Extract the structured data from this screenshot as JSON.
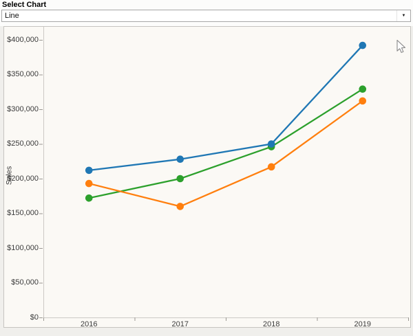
{
  "header": {
    "label": "Select Chart",
    "dropdown": {
      "value": "Line"
    }
  },
  "icons": {
    "dropdown_arrow": "▼"
  },
  "chart_data": {
    "type": "line",
    "title": "",
    "xlabel": "",
    "ylabel": "Sales",
    "categories": [
      "2016",
      "2017",
      "2018",
      "2019"
    ],
    "series": [
      {
        "name": "blue",
        "color": "#1f77b4",
        "values": [
          212000,
          228000,
          250000,
          392000
        ]
      },
      {
        "name": "orange",
        "color": "#ff7f0e",
        "values": [
          193000,
          160000,
          217000,
          312000
        ]
      },
      {
        "name": "green",
        "color": "#2ca02c",
        "values": [
          172000,
          200000,
          246000,
          329000
        ]
      }
    ],
    "ylim": [
      0,
      400000
    ],
    "ytick_step": 50000,
    "ytick_labels": [
      "$0",
      "$50,000",
      "$100,000",
      "$150,000",
      "$200,000",
      "$250,000",
      "$300,000",
      "$350,000",
      "$400,000"
    ],
    "grid": false,
    "legend": "none",
    "marker": "circle"
  }
}
